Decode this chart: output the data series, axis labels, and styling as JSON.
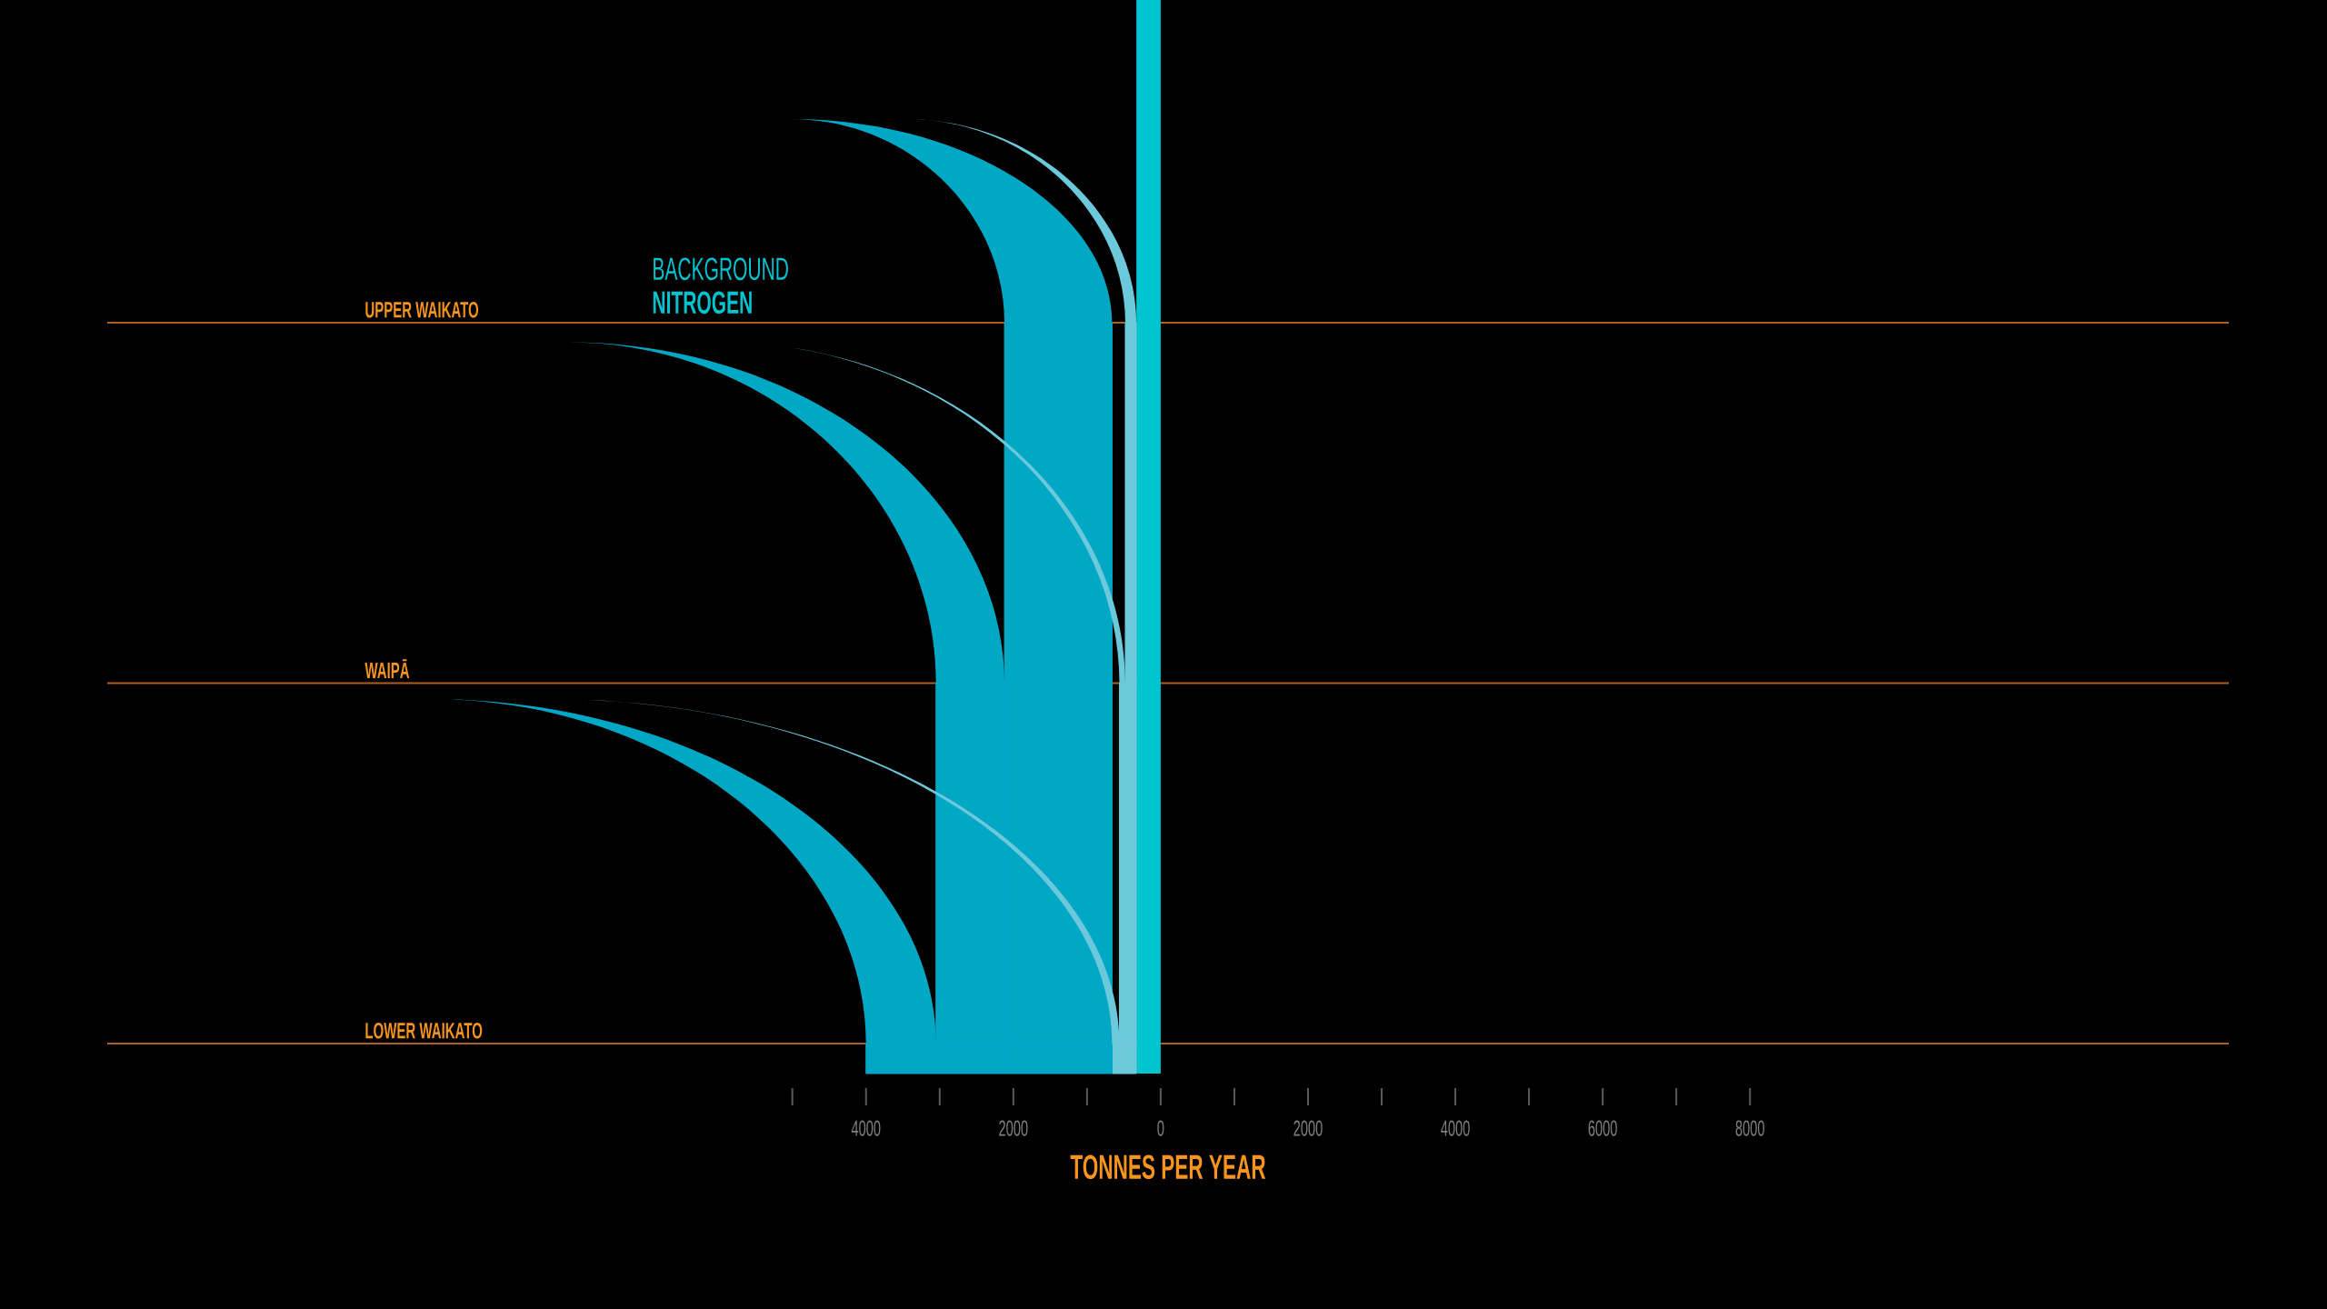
{
  "chart_data": {
    "type": "bar",
    "orientation": "horizontal",
    "title": "BACKGROUND **NITROGEN**",
    "xlabel": "TONNES PER YEAR",
    "categories": [
      "UPPER WAIKATO",
      "WAIPĀ",
      "LOWER WAIKATO"
    ],
    "series": [
      {
        "color": "#6cc9dc",
        "values": [
          -150,
          -150,
          -150
        ],
        "base": [
          -330,
          -330,
          -330
        ]
      },
      {
        "color": "#6cc9dc",
        "values": [
          null,
          -80,
          -80
        ],
        "base": [
          null,
          -480,
          -480
        ]
      },
      {
        "color": "#6cc9dc",
        "values": [
          null,
          null,
          -100
        ],
        "base": [
          null,
          null,
          -560
        ]
      },
      {
        "color": "#00a8c6",
        "values": [
          -1460,
          -1460,
          -1460
        ],
        "base": [
          -660,
          -660,
          -660
        ]
      },
      {
        "color": "#00a8c6",
        "values": [
          null,
          -930,
          -930
        ],
        "base": [
          null,
          -2120,
          -2120
        ]
      },
      {
        "color": "#00a8c6",
        "values": [
          null,
          null,
          -950
        ],
        "base": [
          null,
          null,
          -3050
        ]
      }
    ],
    "bands": [
      {
        "axis": "x",
        "from": -330,
        "to": 0,
        "color": "#00c4d0"
      }
    ],
    "ref_lines": [
      {
        "axis": "y",
        "value": "UPPER WAIKATO",
        "color": "#b0601c"
      },
      {
        "axis": "y",
        "value": "WAIPĀ",
        "color": "#b0601c"
      },
      {
        "axis": "y",
        "value": "LOWER WAIKATO",
        "color": "#b0601c"
      }
    ],
    "xlim": [
      -14300,
      14500
    ],
    "xticks": [
      {
        "value": -4000,
        "label": "4000"
      },
      {
        "value": -2000,
        "label": "2000"
      },
      0,
      2000,
      4000,
      6000,
      8000
    ]
  }
}
